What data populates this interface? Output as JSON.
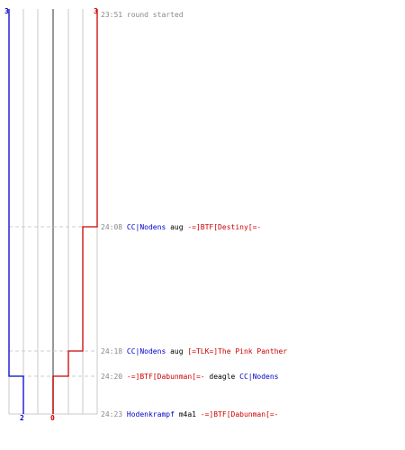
{
  "colors": {
    "blue": "#0000cc",
    "red": "#cc0000",
    "grid": "#c8c8c8",
    "center": "#777777",
    "dash": "#cccccc",
    "time": "#888888",
    "action": "#000000"
  },
  "scores": {
    "top_blue": "3",
    "top_red": "3",
    "bottom_blue": "2",
    "bottom_red": "0"
  },
  "events": [
    {
      "time": "23:51",
      "parts": [
        {
          "text": "round started",
          "color": "time"
        }
      ]
    },
    {
      "time": "24:08",
      "parts": [
        {
          "text": "CC|Nodens",
          "color": "blue"
        },
        {
          "text": "aug",
          "color": "action"
        },
        {
          "text": "-=]BTF[Destiny[=-",
          "color": "red"
        }
      ]
    },
    {
      "time": "24:18",
      "parts": [
        {
          "text": "CC|Nodens",
          "color": "blue"
        },
        {
          "text": "aug",
          "color": "action"
        },
        {
          "text": "[=TLK=]The Pink Panther",
          "color": "red"
        }
      ]
    },
    {
      "time": "24:20",
      "parts": [
        {
          "text": "-=]BTF[Dabunman[=-",
          "color": "red"
        },
        {
          "text": "deagle",
          "color": "action"
        },
        {
          "text": "CC|Nodens",
          "color": "blue"
        }
      ]
    },
    {
      "time": "24:23",
      "parts": [
        {
          "text": "Hodenkrampf",
          "color": "blue"
        },
        {
          "text": "m4a1",
          "color": "action"
        },
        {
          "text": "-=]BTF[Dabunman[=-",
          "color": "red"
        }
      ]
    }
  ]
}
